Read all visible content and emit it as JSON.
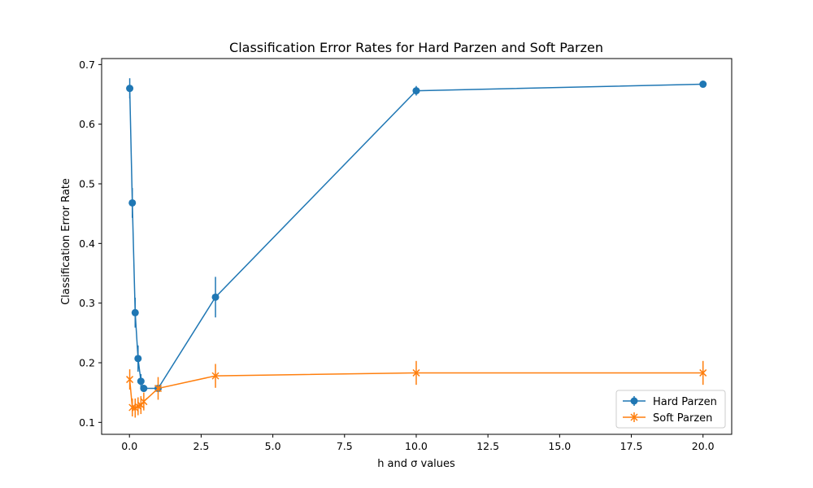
{
  "chart_data": {
    "type": "line",
    "title": "Classification Error Rates for Hard Parzen and Soft Parzen",
    "xlabel": "h and σ values",
    "ylabel": "Classification Error Rate",
    "xlim": [
      -0.97,
      21.0
    ],
    "ylim": [
      0.08,
      0.71
    ],
    "xticks": [
      0.0,
      2.5,
      5.0,
      7.5,
      10.0,
      12.5,
      15.0,
      17.5,
      20.0
    ],
    "xtick_labels": [
      "0.0",
      "2.5",
      "5.0",
      "7.5",
      "10.0",
      "12.5",
      "15.0",
      "17.5",
      "20.0"
    ],
    "yticks": [
      0.1,
      0.2,
      0.3,
      0.4,
      0.5,
      0.6,
      0.7
    ],
    "ytick_labels": [
      "0.1",
      "0.2",
      "0.3",
      "0.4",
      "0.5",
      "0.6",
      "0.7"
    ],
    "grid": false,
    "legend_position": "lower right",
    "series": [
      {
        "name": "Hard Parzen",
        "color": "#1f77b4",
        "marker": "circle",
        "x": [
          0.01,
          0.1,
          0.2,
          0.3,
          0.4,
          0.5,
          1.0,
          3.0,
          10.0,
          20.0
        ],
        "y": [
          0.66,
          0.468,
          0.284,
          0.207,
          0.169,
          0.157,
          0.157,
          0.31,
          0.656,
          0.667
        ],
        "err": [
          0.017,
          0.025,
          0.025,
          0.022,
          0.012,
          0.005,
          0.006,
          0.034,
          0.008,
          0.003
        ]
      },
      {
        "name": "Soft Parzen",
        "color": "#ff7f0e",
        "marker": "x",
        "x": [
          0.01,
          0.1,
          0.2,
          0.3,
          0.4,
          0.5,
          1.0,
          3.0,
          10.0,
          20.0
        ],
        "y": [
          0.172,
          0.125,
          0.124,
          0.127,
          0.129,
          0.135,
          0.157,
          0.178,
          0.183,
          0.183
        ],
        "err": [
          0.017,
          0.015,
          0.016,
          0.015,
          0.015,
          0.015,
          0.019,
          0.02,
          0.02,
          0.02
        ]
      }
    ]
  }
}
